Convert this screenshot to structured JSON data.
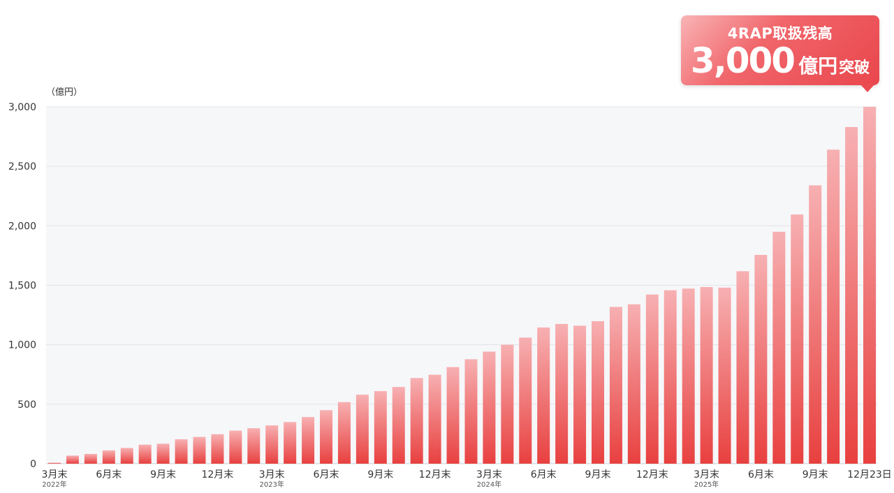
{
  "chart_data": {
    "type": "bar",
    "unit_label": "（億円）",
    "ylim": [
      0,
      3000
    ],
    "yticks": [
      0,
      500,
      1000,
      1500,
      2000,
      2500,
      3000
    ],
    "ytick_labels": [
      "0",
      "500",
      "1,000",
      "1,500",
      "2,000",
      "2,500",
      "3,000"
    ],
    "grid": true,
    "legend": "none",
    "colors": {
      "bar_bottom": "#e8403f",
      "bar_top": "#f7b0b2",
      "plot_bg": "#f6f7f9",
      "grid": "#e2e4e8"
    },
    "categories": [
      "2022-03",
      "2022-04",
      "2022-05",
      "2022-06",
      "2022-07",
      "2022-08",
      "2022-09",
      "2022-10",
      "2022-11",
      "2022-12",
      "2023-01",
      "2023-02",
      "2023-03",
      "2023-04",
      "2023-05",
      "2023-06",
      "2023-07",
      "2023-08",
      "2023-09",
      "2023-10",
      "2023-11",
      "2023-12",
      "2024-01",
      "2024-02",
      "2024-03",
      "2024-04",
      "2024-05",
      "2024-06",
      "2024-07",
      "2024-08",
      "2024-09",
      "2024-10",
      "2024-11",
      "2024-12",
      "2025-01",
      "2025-02",
      "2025-03",
      "2025-04",
      "2025-05",
      "2025-06",
      "2025-07",
      "2025-08",
      "2025-09",
      "2025-10",
      "2025-11",
      "2025-12-23"
    ],
    "values": [
      8,
      68,
      82,
      112,
      132,
      160,
      168,
      205,
      225,
      248,
      278,
      298,
      322,
      350,
      392,
      450,
      518,
      580,
      610,
      645,
      720,
      748,
      812,
      878,
      942,
      1000,
      1060,
      1145,
      1175,
      1160,
      1198,
      1318,
      1340,
      1422,
      1458,
      1472,
      1485,
      1480,
      1618,
      1755,
      1950,
      2095,
      2340,
      2640,
      2830,
      3000
    ],
    "x_tick_labels": [
      {
        "index": 0,
        "text": "3月末",
        "year": "2022年"
      },
      {
        "index": 3,
        "text": "6月末"
      },
      {
        "index": 6,
        "text": "9月末"
      },
      {
        "index": 9,
        "text": "12月末"
      },
      {
        "index": 12,
        "text": "3月末",
        "year": "2023年"
      },
      {
        "index": 15,
        "text": "6月末"
      },
      {
        "index": 18,
        "text": "9月末"
      },
      {
        "index": 21,
        "text": "12月末"
      },
      {
        "index": 24,
        "text": "3月末",
        "year": "2024年"
      },
      {
        "index": 27,
        "text": "6月末"
      },
      {
        "index": 30,
        "text": "9月末"
      },
      {
        "index": 33,
        "text": "12月末"
      },
      {
        "index": 36,
        "text": "3月末",
        "year": "2025年"
      },
      {
        "index": 39,
        "text": "6月末"
      },
      {
        "index": 42,
        "text": "9月末"
      },
      {
        "index": 45,
        "text": "12月23日"
      }
    ]
  },
  "callout": {
    "line1": "4RAP取扱残高",
    "big_number": "3,000",
    "unit": "億円",
    "suffix": "突破"
  }
}
